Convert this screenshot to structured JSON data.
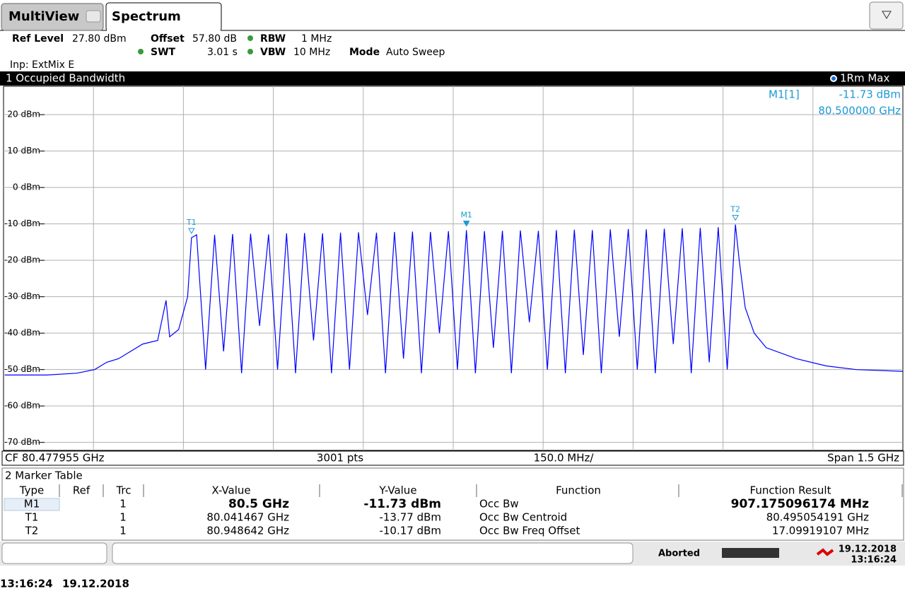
{
  "tabs": {
    "multiview": "MultiView",
    "spectrum": "Spectrum"
  },
  "settings": {
    "ref_level_label": "Ref Level",
    "ref_level": "27.80 dBm",
    "offset_label": "Offset",
    "offset": "57.80 dB",
    "rbw_label": "RBW",
    "rbw": "1 MHz",
    "swt_label": "SWT",
    "swt": "3.01 s",
    "vbw_label": "VBW",
    "vbw": "10 MHz",
    "mode_label": "Mode",
    "mode": "Auto Sweep",
    "input": "Inp: ExtMix E"
  },
  "chart_data": {
    "type": "line",
    "title": "1 Occupied Bandwidth",
    "trace_label": "1Rm Max",
    "readout": {
      "name": "M1[1]",
      "level": "-11.73 dBm",
      "frequency": "80.500000 GHz"
    },
    "xlim": [
      79.727955,
      81.227955
    ],
    "ylim": [
      -72.2,
      27.8
    ],
    "yticks": [
      {
        "value": 20,
        "label": "20 dBm"
      },
      {
        "value": 10,
        "label": "10 dBm"
      },
      {
        "value": 0,
        "label": "0 dBm"
      },
      {
        "value": -10,
        "label": "-10 dBm"
      },
      {
        "value": -20,
        "label": "-20 dBm"
      },
      {
        "value": -30,
        "label": "-30 dBm"
      },
      {
        "value": -40,
        "label": "-40 dBm"
      },
      {
        "value": -50,
        "label": "-50 dBm"
      },
      {
        "value": -60,
        "label": "-60 dBm"
      },
      {
        "value": -70,
        "label": "-70 dBm"
      }
    ],
    "grid": true,
    "axis_footer": {
      "center_frequency": "CF 80.477955 GHz",
      "points": "3001 pts",
      "per_division": "150.0 MHz/",
      "span": "Span 1.5 GHz"
    },
    "color": "#0000ff",
    "x": [
      79.73,
      79.8,
      79.85,
      79.88,
      79.9,
      79.92,
      79.94,
      79.96,
      79.985,
      79.999,
      80.005,
      80.02,
      80.035,
      80.041467,
      80.05,
      80.065,
      80.08,
      80.095,
      80.11,
      80.125,
      80.14,
      80.155,
      80.17,
      80.185,
      80.2,
      80.215,
      80.23,
      80.245,
      80.26,
      80.275,
      80.29,
      80.305,
      80.32,
      80.335,
      80.35,
      80.365,
      80.38,
      80.395,
      80.41,
      80.425,
      80.44,
      80.455,
      80.47,
      80.485,
      80.5,
      80.515,
      80.53,
      80.545,
      80.56,
      80.575,
      80.59,
      80.605,
      80.62,
      80.635,
      80.65,
      80.665,
      80.68,
      80.695,
      80.71,
      80.725,
      80.74,
      80.755,
      80.77,
      80.785,
      80.8,
      80.815,
      80.83,
      80.845,
      80.86,
      80.875,
      80.89,
      80.905,
      80.92,
      80.935,
      80.948642,
      80.955,
      80.965,
      80.98,
      81.0,
      81.05,
      81.1,
      81.15,
      81.227955
    ],
    "values": [
      -51.5,
      -51.5,
      -51,
      -50,
      -48,
      -47,
      -45,
      -43,
      -42,
      -31,
      -41,
      -39,
      -30,
      -13.77,
      -13,
      -50,
      -13,
      -45,
      -12.8,
      -51,
      -12.7,
      -38,
      -12.9,
      -50,
      -12.6,
      -51,
      -12.5,
      -42,
      -12.6,
      -51,
      -12.4,
      -50,
      -12.3,
      -35,
      -12.4,
      -51,
      -12.2,
      -47,
      -12.1,
      -51,
      -12.2,
      -40,
      -12,
      -50,
      -11.73,
      -51,
      -12,
      -44,
      -11.9,
      -51,
      -11.8,
      -37,
      -11.9,
      -50,
      -11.7,
      -51,
      -11.6,
      -46,
      -11.7,
      -51,
      -11.5,
      -41,
      -11.4,
      -50,
      -11.5,
      -51,
      -11.3,
      -43,
      -11.2,
      -51,
      -11.1,
      -48,
      -10.9,
      -50,
      -10.17,
      -20,
      -33,
      -40,
      -44,
      -47,
      -49,
      -50,
      -50.5
    ],
    "marker_color": "#1a9ad6",
    "markers": [
      {
        "label": "T1",
        "x": 80.041467,
        "y": -13.77
      },
      {
        "label": "M1",
        "x": 80.5,
        "y": -11.73
      },
      {
        "label": "T2",
        "x": 80.948642,
        "y": -10.17
      }
    ]
  },
  "marker_table": {
    "title": "2 Marker Table",
    "headers": [
      "Type",
      "Ref",
      "Trc",
      "X-Value",
      "Y-Value",
      "Function",
      "Function Result"
    ],
    "rows": [
      {
        "type": "M1",
        "trc": "1",
        "x_value": "80.5 GHz",
        "y_value": "-11.73 dBm",
        "function": "Occ Bw",
        "result": "907.175096174 MHz"
      },
      {
        "type": "T1",
        "trc": "1",
        "x_value": "80.041467 GHz",
        "y_value": "-13.77 dBm",
        "function": "Occ Bw Centroid",
        "result": "80.495054191 GHz"
      },
      {
        "type": "T2",
        "trc": "1",
        "x_value": "80.948642 GHz",
        "y_value": "-10.17 dBm",
        "function": "Occ Bw Freq Offset",
        "result": "17.09919107 MHz"
      }
    ]
  },
  "status": {
    "state": "Aborted",
    "date": "19.12.2018",
    "time": "13:16:24"
  },
  "footer": {
    "time": "13:16:24",
    "date": "19.12.2018"
  }
}
